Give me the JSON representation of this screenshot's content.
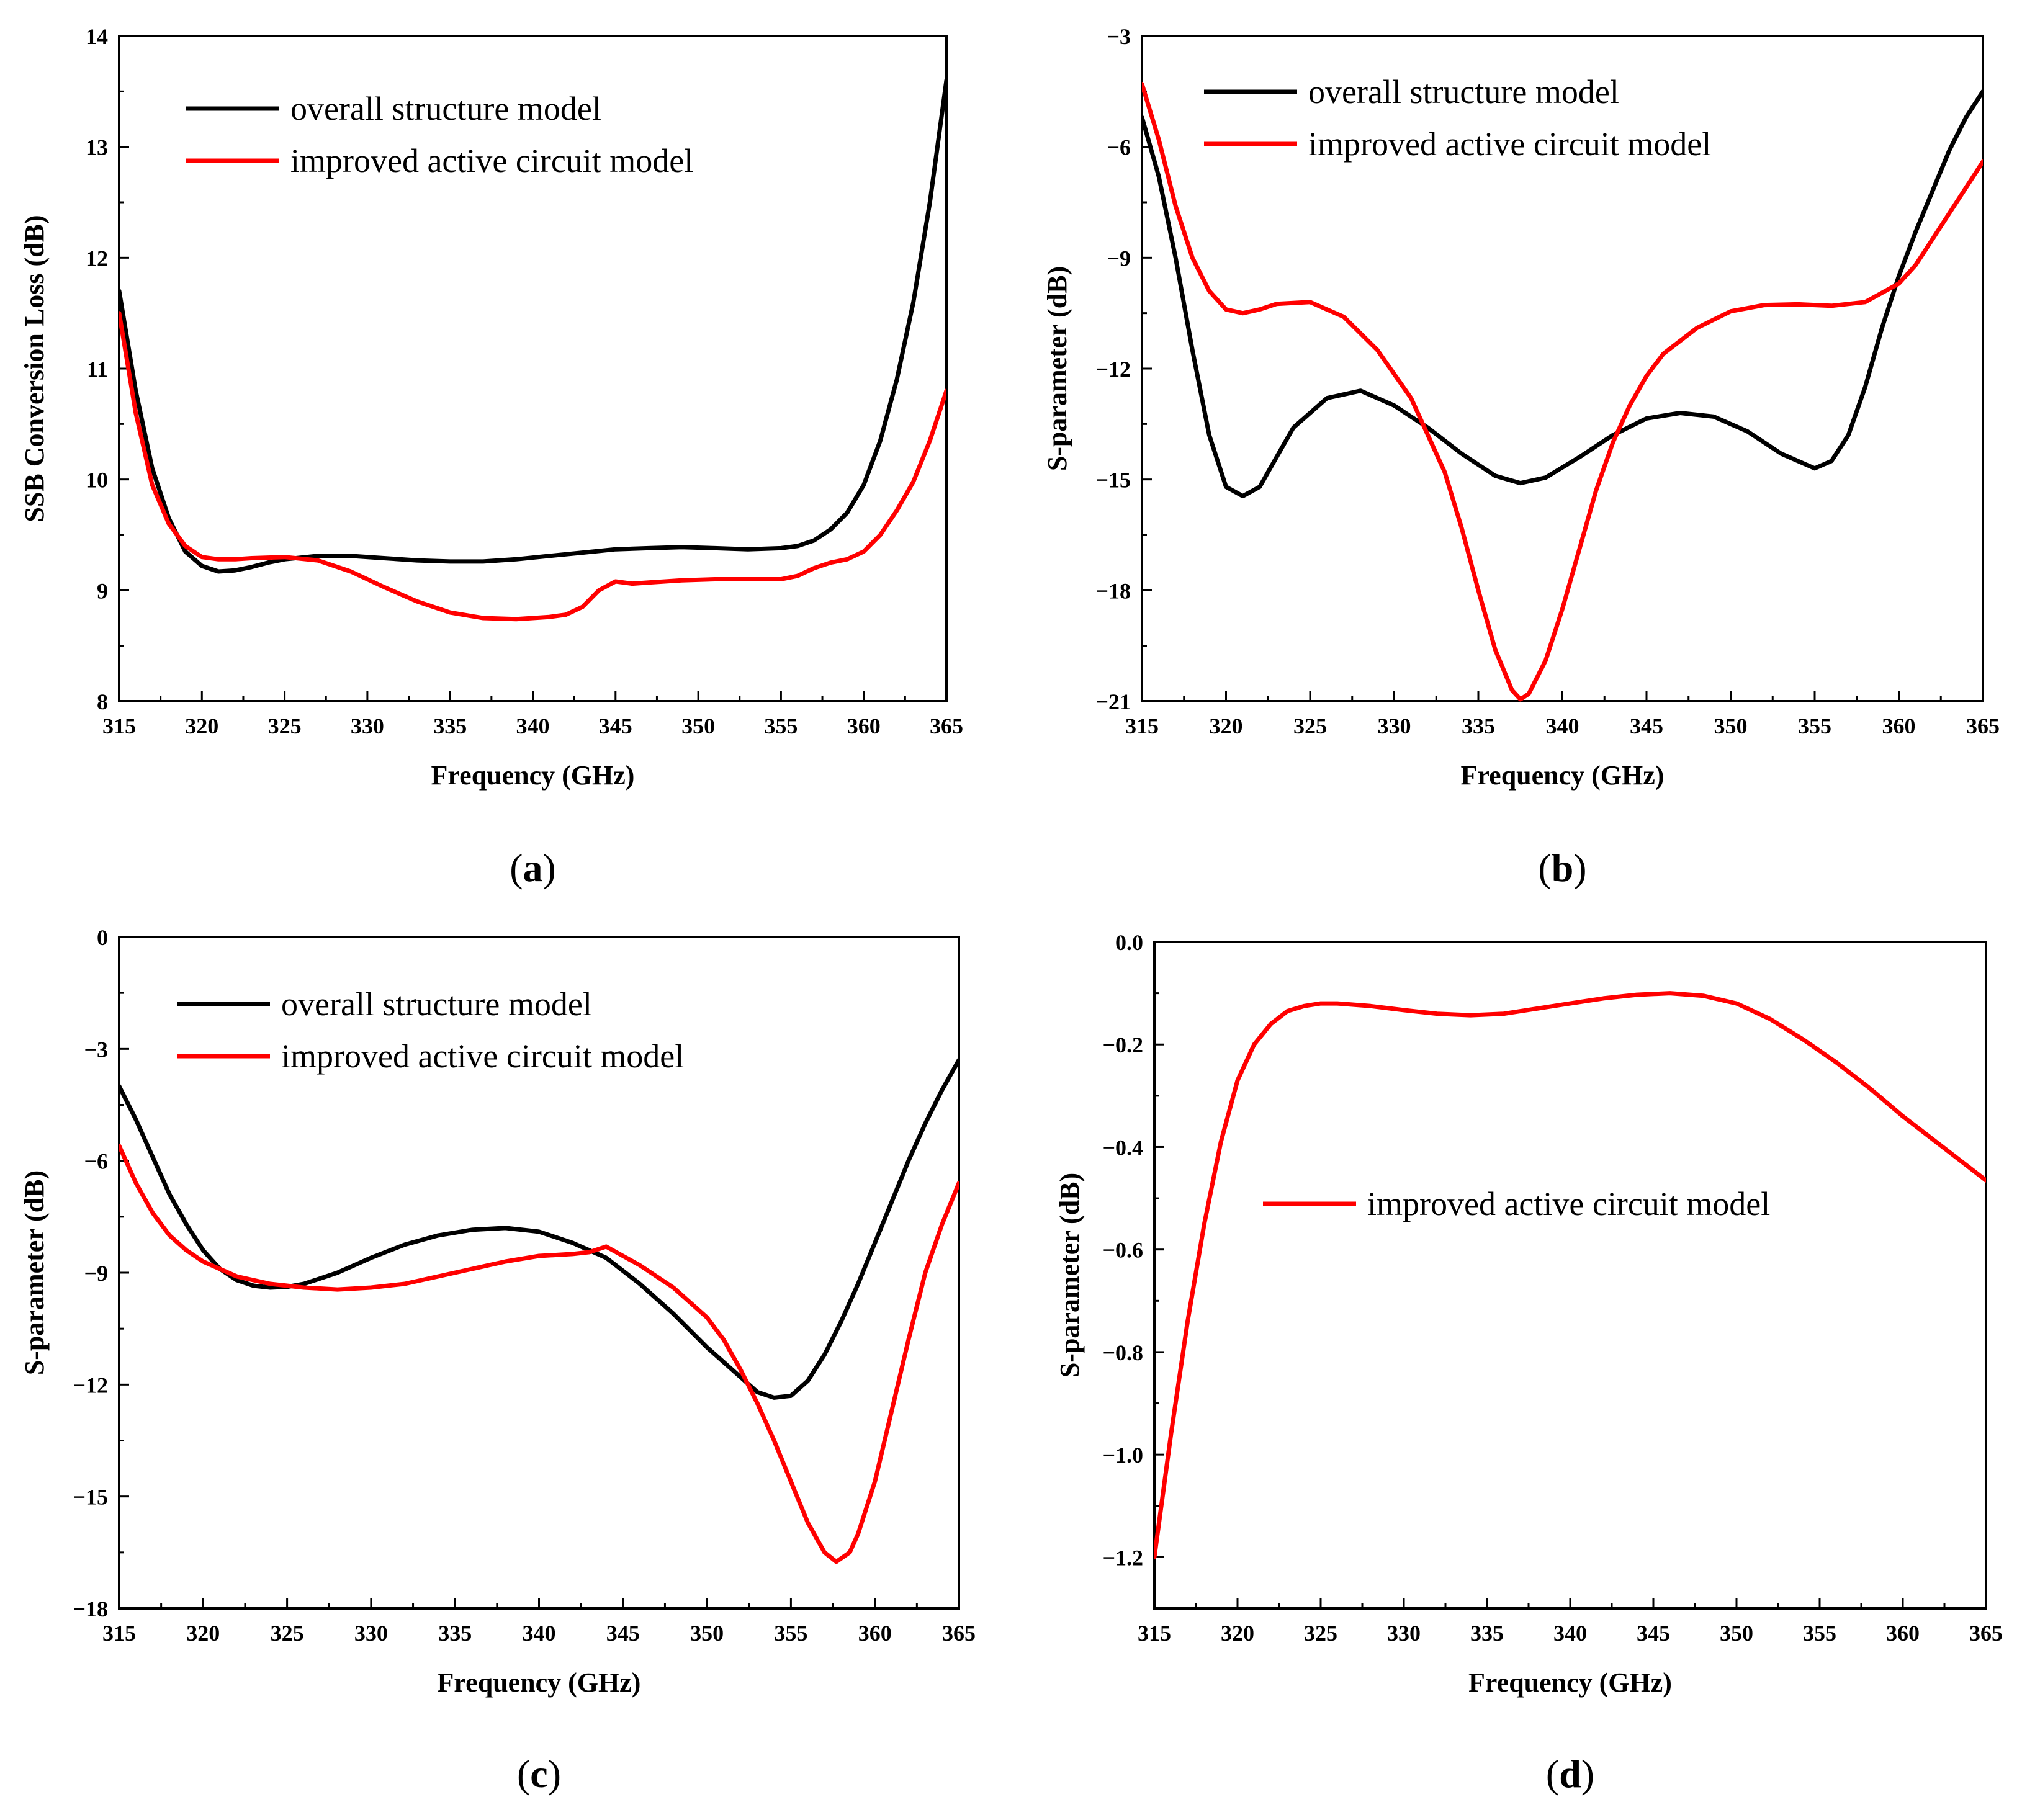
{
  "chart_data": [
    {
      "type": "line",
      "caption": "a",
      "xlabel": "Frequency (GHz)",
      "ylabel": "SSB Conversion Loss (dB)",
      "xlim": [
        315,
        365
      ],
      "ylim": [
        8,
        14
      ],
      "xticks": [
        "315",
        "320",
        "325",
        "330",
        "335",
        "340",
        "345",
        "350",
        "355",
        "360",
        "365"
      ],
      "yticks": [
        "8",
        "9",
        "10",
        "11",
        "12",
        "13",
        "14"
      ],
      "legend": "top-left",
      "series": [
        {
          "name": "overall structure model",
          "color": "#000000",
          "x": [
            315,
            316,
            317,
            318,
            319,
            320,
            321,
            322,
            323,
            324,
            325,
            327,
            329,
            331,
            333,
            335,
            337,
            339,
            341,
            343,
            345,
            347,
            349,
            351,
            353,
            355,
            356,
            357,
            358,
            359,
            360,
            361,
            362,
            363,
            364,
            365
          ],
          "y": [
            11.7,
            10.8,
            10.1,
            9.65,
            9.35,
            9.22,
            9.17,
            9.18,
            9.21,
            9.25,
            9.28,
            9.31,
            9.31,
            9.29,
            9.27,
            9.26,
            9.26,
            9.28,
            9.31,
            9.34,
            9.37,
            9.38,
            9.39,
            9.38,
            9.37,
            9.38,
            9.4,
            9.45,
            9.55,
            9.7,
            9.95,
            10.35,
            10.9,
            11.6,
            12.5,
            13.6
          ]
        },
        {
          "name": "improved active circuit model",
          "color": "#ff0000",
          "x": [
            315,
            316,
            317,
            318,
            319,
            320,
            321,
            322,
            323,
            325,
            327,
            329,
            331,
            333,
            335,
            337,
            339,
            341,
            342,
            343,
            344,
            345,
            346,
            347,
            349,
            351,
            353,
            355,
            356,
            357,
            358,
            359,
            360,
            361,
            362,
            363,
            364,
            365
          ],
          "y": [
            11.5,
            10.6,
            9.95,
            9.6,
            9.4,
            9.3,
            9.28,
            9.28,
            9.29,
            9.3,
            9.27,
            9.17,
            9.03,
            8.9,
            8.8,
            8.75,
            8.74,
            8.76,
            8.78,
            8.85,
            9.0,
            9.08,
            9.06,
            9.07,
            9.09,
            9.1,
            9.1,
            9.1,
            9.13,
            9.2,
            9.25,
            9.28,
            9.35,
            9.5,
            9.72,
            9.98,
            10.35,
            10.8
          ]
        }
      ]
    },
    {
      "type": "line",
      "caption": "b",
      "xlabel": "Frequency (GHz)",
      "ylabel": "S-parameter (dB)",
      "xlim": [
        315,
        365
      ],
      "ylim": [
        -21,
        -3
      ],
      "xticks": [
        "315",
        "320",
        "325",
        "330",
        "335",
        "340",
        "345",
        "350",
        "355",
        "360",
        "365"
      ],
      "yticks": [
        "-3",
        "-6",
        "-9",
        "-12",
        "-15",
        "-18",
        "-21"
      ],
      "legend": "top-left",
      "series": [
        {
          "name": "overall structure model",
          "color": "#000000",
          "x": [
            315,
            316,
            317,
            318,
            319,
            320,
            321,
            322,
            323,
            324,
            326,
            328,
            330,
            332,
            334,
            336,
            337.5,
            339,
            341,
            343,
            345,
            347,
            349,
            351,
            353,
            355,
            356,
            357,
            358,
            359,
            360,
            361,
            362,
            363,
            364,
            365
          ],
          "y": [
            -5.2,
            -6.8,
            -9.0,
            -11.5,
            -13.8,
            -15.2,
            -15.45,
            -15.2,
            -14.4,
            -13.6,
            -12.8,
            -12.6,
            -13.0,
            -13.6,
            -14.3,
            -14.9,
            -15.1,
            -14.95,
            -14.4,
            -13.8,
            -13.35,
            -13.2,
            -13.3,
            -13.7,
            -14.3,
            -14.7,
            -14.5,
            -13.8,
            -12.5,
            -10.9,
            -9.5,
            -8.3,
            -7.2,
            -6.1,
            -5.2,
            -4.5
          ]
        },
        {
          "name": "improved active circuit model",
          "color": "#ff0000",
          "x": [
            315,
            316,
            317,
            318,
            319,
            320,
            321,
            322,
            323,
            325,
            327,
            329,
            331,
            333,
            334,
            335,
            336,
            337,
            337.5,
            338,
            339,
            340,
            341,
            342,
            343,
            344,
            345,
            346,
            348,
            350,
            352,
            354,
            356,
            358,
            360,
            361,
            362,
            363,
            364,
            365
          ],
          "y": [
            -4.3,
            -5.8,
            -7.6,
            -9.0,
            -9.9,
            -10.4,
            -10.5,
            -10.4,
            -10.25,
            -10.2,
            -10.6,
            -11.5,
            -12.8,
            -14.8,
            -16.3,
            -18.0,
            -19.6,
            -20.7,
            -20.95,
            -20.8,
            -19.9,
            -18.5,
            -16.9,
            -15.3,
            -14.0,
            -13.0,
            -12.2,
            -11.6,
            -10.9,
            -10.45,
            -10.28,
            -10.26,
            -10.3,
            -10.2,
            -9.7,
            -9.2,
            -8.5,
            -7.8,
            -7.1,
            -6.4
          ]
        }
      ]
    },
    {
      "type": "line",
      "caption": "c",
      "xlabel": "Frequency (GHz)",
      "ylabel": "S-parameter (dB)",
      "xlim": [
        315,
        365
      ],
      "ylim": [
        -18,
        0
      ],
      "xticks": [
        "315",
        "320",
        "325",
        "330",
        "335",
        "340",
        "345",
        "350",
        "355",
        "360",
        "365"
      ],
      "yticks": [
        "0",
        "-3",
        "-6",
        "-9",
        "-12",
        "-15",
        "-18"
      ],
      "legend": "top-left",
      "series": [
        {
          "name": "overall structure  model",
          "color": "#000000",
          "x": [
            315,
            316,
            317,
            318,
            319,
            320,
            321,
            322,
            323,
            324,
            325,
            326,
            328,
            330,
            332,
            334,
            336,
            338,
            340,
            342,
            344,
            346,
            348,
            350,
            352,
            353,
            354,
            355,
            356,
            357,
            358,
            359,
            360,
            361,
            362,
            363,
            364,
            365
          ],
          "y": [
            -4.0,
            -4.9,
            -5.9,
            -6.9,
            -7.7,
            -8.4,
            -8.9,
            -9.2,
            -9.35,
            -9.4,
            -9.38,
            -9.3,
            -9.0,
            -8.6,
            -8.25,
            -8.0,
            -7.85,
            -7.8,
            -7.9,
            -8.2,
            -8.6,
            -9.3,
            -10.1,
            -11.0,
            -11.8,
            -12.2,
            -12.35,
            -12.3,
            -11.9,
            -11.2,
            -10.3,
            -9.3,
            -8.2,
            -7.1,
            -6.0,
            -5.0,
            -4.1,
            -3.3
          ]
        },
        {
          "name": "improved active circuit model",
          "color": "#ff0000",
          "x": [
            315,
            316,
            317,
            318,
            319,
            320,
            322,
            324,
            326,
            328,
            330,
            332,
            334,
            336,
            338,
            340,
            342,
            343,
            344,
            345,
            346,
            348,
            350,
            351,
            352,
            353,
            354,
            355,
            356,
            357,
            357.7,
            358.5,
            359,
            360,
            361,
            362,
            363,
            364,
            365
          ],
          "y": [
            -5.6,
            -6.6,
            -7.4,
            -8.0,
            -8.4,
            -8.7,
            -9.1,
            -9.3,
            -9.4,
            -9.45,
            -9.4,
            -9.3,
            -9.1,
            -8.9,
            -8.7,
            -8.55,
            -8.5,
            -8.45,
            -8.3,
            -8.55,
            -8.8,
            -9.4,
            -10.2,
            -10.8,
            -11.6,
            -12.5,
            -13.5,
            -14.6,
            -15.7,
            -16.5,
            -16.75,
            -16.5,
            -16.0,
            -14.6,
            -12.7,
            -10.8,
            -9.0,
            -7.7,
            -6.6
          ]
        }
      ]
    },
    {
      "type": "line",
      "caption": "d",
      "xlabel": "Frequency (GHz)",
      "ylabel": "S-parameter (dB)",
      "xlim": [
        315,
        365
      ],
      "ylim": [
        -1.3,
        0.0
      ],
      "xticks": [
        "315",
        "320",
        "325",
        "330",
        "335",
        "340",
        "345",
        "350",
        "355",
        "360",
        "365"
      ],
      "yticks": [
        "0.0",
        "-0.2",
        "-0.4",
        "-0.6",
        "-0.8",
        "-1.0",
        "-1.2"
      ],
      "legend": "center",
      "series": [
        {
          "name": "improved active circuit model",
          "color": "#ff0000",
          "x": [
            315,
            316,
            317,
            318,
            319,
            320,
            321,
            322,
            323,
            324,
            325,
            326,
            328,
            330,
            332,
            334,
            336,
            338,
            340,
            342,
            344,
            346,
            348,
            350,
            352,
            354,
            356,
            358,
            360,
            362,
            364,
            365
          ],
          "y": [
            -1.2,
            -0.96,
            -0.74,
            -0.55,
            -0.39,
            -0.27,
            -0.2,
            -0.16,
            -0.135,
            -0.125,
            -0.12,
            -0.12,
            -0.125,
            -0.133,
            -0.14,
            -0.143,
            -0.14,
            -0.13,
            -0.12,
            -0.11,
            -0.103,
            -0.1,
            -0.105,
            -0.12,
            -0.15,
            -0.19,
            -0.235,
            -0.285,
            -0.34,
            -0.39,
            -0.44,
            -0.465
          ]
        }
      ]
    }
  ]
}
